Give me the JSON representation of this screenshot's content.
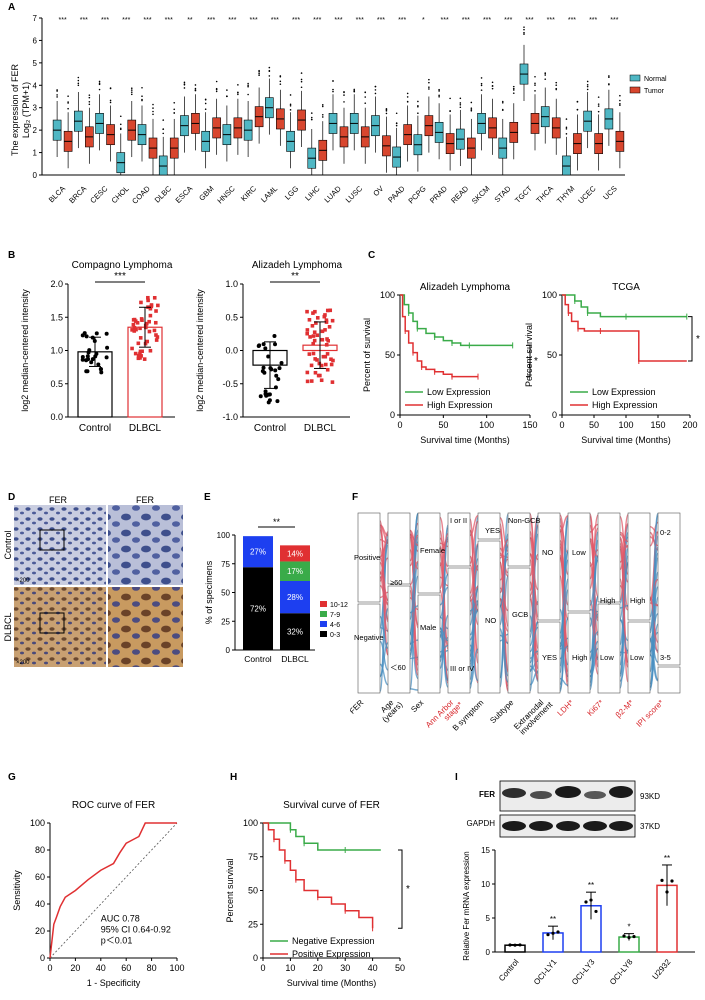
{
  "panel_labels": {
    "a": "A",
    "b": "B",
    "c": "C",
    "d": "D",
    "e": "E",
    "f": "F",
    "g": "G",
    "h": "H",
    "i": "I"
  },
  "colors": {
    "normal": "#4fb7c4",
    "tumor": "#d8462e",
    "green": "#3aab49",
    "red": "#e03032",
    "blue": "#1d3ff0",
    "sankey_red": "#e05a6a",
    "sankey_blue": "#4a8fc0"
  },
  "chart_data": [
    {
      "id": "A",
      "type": "box",
      "ylabel_line1": "The expression of FER",
      "ylabel_line2": "Log₂ (TPM+1)",
      "ylim": [
        0,
        7
      ],
      "yticks": [
        "0",
        "1",
        "2",
        "3",
        "4",
        "5",
        "6",
        "7"
      ],
      "legend": [
        "Normal",
        "Tumor"
      ],
      "categories": [
        "BLCA",
        "BRCA",
        "CESC",
        "CHOL",
        "COAD",
        "DLBC",
        "ESCA",
        "GBM",
        "HNSC",
        "KIRC",
        "LAML",
        "LGG",
        "LIHC",
        "LUAD",
        "LUSC",
        "OV",
        "PAAD",
        "PCPG",
        "PRAD",
        "READ",
        "SKCM",
        "STAD",
        "TGCT",
        "THCA",
        "THYM",
        "UCEC",
        "UCS"
      ],
      "significance": [
        "***",
        "***",
        "***",
        "***",
        "***",
        "***",
        "**",
        "***",
        "***",
        "***",
        "***",
        "***",
        "***",
        "***",
        "***",
        "***",
        "***",
        "*",
        "***",
        "***",
        "***",
        "***",
        "***",
        "***",
        "***",
        "***",
        "***"
      ],
      "normal_median": [
        2.0,
        2.4,
        2.3,
        0.55,
        1.8,
        0.4,
        2.2,
        1.5,
        1.8,
        2.0,
        3.0,
        1.5,
        0.75,
        2.3,
        2.3,
        2.2,
        0.8,
        1.35,
        1.9,
        1.6,
        2.3,
        1.2,
        4.5,
        2.6,
        0.4,
        2.4,
        2.5
      ],
      "tumor_median": [
        1.5,
        1.7,
        1.8,
        2.0,
        1.2,
        1.2,
        2.3,
        2.1,
        2.1,
        2.6,
        2.5,
        2.45,
        1.1,
        1.7,
        1.7,
        1.3,
        1.8,
        2.2,
        1.4,
        1.2,
        2.1,
        1.9,
        2.3,
        2.1,
        1.4,
        1.4,
        1.5
      ]
    },
    {
      "id": "B1",
      "type": "bar-scatter",
      "title": "Compagno Lymphoma",
      "ylabel": "log2 median-centered intensity",
      "categories": [
        "Control",
        "DLBCL"
      ],
      "values": [
        0.98,
        1.35
      ],
      "errors": [
        0.22,
        0.3
      ],
      "ylim": [
        0,
        2.0
      ],
      "yticks": [
        "0.0",
        "0.5",
        "1.0",
        "1.5",
        "2.0"
      ],
      "significance": "***"
    },
    {
      "id": "B2",
      "type": "bar-scatter",
      "title": "Alizadeh Lymphoma",
      "ylabel": "log2 median-centered intensity",
      "categories": [
        "Control",
        "DLBCL"
      ],
      "values": [
        -0.22,
        0.08
      ],
      "errors": [
        0.35,
        0.35
      ],
      "ylim": [
        -1.0,
        1.0
      ],
      "yticks": [
        "-1.0",
        "-0.5",
        "0.0",
        "0.5",
        "1.0"
      ],
      "significance": "**"
    },
    {
      "id": "C1",
      "type": "line",
      "title": "Alizadeh Lymphoma",
      "xlabel": "Survival time (Months)",
      "ylabel": "Percent of survival",
      "xlim": [
        0,
        150
      ],
      "xticks": [
        "0",
        "50",
        "100",
        "150"
      ],
      "ylim": [
        0,
        100
      ],
      "yticks": [
        "0",
        "50",
        "100"
      ],
      "series": [
        {
          "name": "Low Expression",
          "x": [
            0,
            5,
            10,
            15,
            20,
            30,
            40,
            50,
            60,
            70,
            80,
            90,
            130
          ],
          "y": [
            100,
            92,
            85,
            78,
            72,
            68,
            65,
            62,
            60,
            58,
            58,
            58,
            58
          ]
        },
        {
          "name": "High Expression",
          "x": [
            0,
            3,
            6,
            10,
            15,
            20,
            25,
            30,
            40,
            50,
            60,
            80,
            90
          ],
          "y": [
            100,
            82,
            70,
            60,
            52,
            45,
            40,
            38,
            36,
            34,
            32,
            32,
            32
          ]
        }
      ],
      "significance": "*"
    },
    {
      "id": "C2",
      "type": "line",
      "title": "TCGA",
      "xlabel": "Survival time (Months)",
      "ylabel": "Percent survival",
      "xlim": [
        0,
        200
      ],
      "xticks": [
        "0",
        "50",
        "100",
        "150",
        "200"
      ],
      "ylim": [
        0,
        100
      ],
      "yticks": [
        "0",
        "50",
        "100"
      ],
      "series": [
        {
          "name": "Low Expression",
          "x": [
            0,
            10,
            20,
            30,
            40,
            60,
            100,
            150,
            195
          ],
          "y": [
            100,
            100,
            95,
            90,
            85,
            82,
            82,
            82,
            82
          ]
        },
        {
          "name": "High Expression",
          "x": [
            0,
            5,
            10,
            15,
            25,
            35,
            60,
            110,
            120,
            195
          ],
          "y": [
            100,
            92,
            85,
            78,
            72,
            70,
            70,
            70,
            45,
            45
          ]
        }
      ],
      "significance": "*"
    },
    {
      "id": "E",
      "type": "stacked-bar",
      "ylabel": "% of specimens",
      "categories": [
        "Control",
        "DLBCL"
      ],
      "ylim": [
        0,
        100
      ],
      "yticks": [
        "0",
        "25",
        "50",
        "75",
        "100"
      ],
      "legend": [
        "10-12",
        "7-9",
        "4-6",
        "0-3"
      ],
      "series": [
        {
          "name": "0-3",
          "values": [
            72,
            32
          ],
          "labels": [
            "72%",
            "32%"
          ]
        },
        {
          "name": "4-6",
          "values": [
            27,
            28
          ],
          "labels": [
            "27%",
            "28%"
          ]
        },
        {
          "name": "7-9",
          "values": [
            0,
            17
          ],
          "labels": [
            "",
            "17%"
          ]
        },
        {
          "name": "10-12",
          "values": [
            0,
            14
          ],
          "labels": [
            "",
            "14%"
          ]
        }
      ],
      "significance": "**"
    },
    {
      "id": "G",
      "type": "line",
      "title": "ROC curve of FER",
      "xlabel": "1 - Specificity",
      "ylabel": "Sensitivity",
      "xlim": [
        0,
        100
      ],
      "xticks": [
        "0",
        "20",
        "40",
        "60",
        "80",
        "100"
      ],
      "ylim": [
        0,
        100
      ],
      "yticks": [
        "0",
        "20",
        "40",
        "60",
        "80",
        "100"
      ],
      "series": [
        {
          "name": "ROC",
          "x": [
            0,
            3,
            5,
            8,
            12,
            20,
            30,
            40,
            50,
            55,
            60,
            70,
            75,
            80,
            100
          ],
          "y": [
            0,
            25,
            30,
            38,
            45,
            50,
            58,
            65,
            70,
            78,
            85,
            90,
            100,
            100,
            100
          ]
        }
      ],
      "annotation": [
        "AUC 0.78",
        "95% CI 0.64-0.92",
        "p＜0.01"
      ]
    },
    {
      "id": "H",
      "type": "line",
      "title": "Survival curve of FER",
      "xlabel": "Survival time (Months)",
      "ylabel": "Percent survival",
      "xlim": [
        0,
        50
      ],
      "xticks": [
        "0",
        "10",
        "20",
        "30",
        "40",
        "50"
      ],
      "ylim": [
        0,
        100
      ],
      "yticks": [
        "0",
        "25",
        "50",
        "75",
        "100"
      ],
      "series": [
        {
          "name": "Negative Expression",
          "x": [
            0,
            5,
            10,
            12,
            15,
            20,
            30,
            43
          ],
          "y": [
            100,
            100,
            95,
            90,
            85,
            80,
            80,
            80
          ]
        },
        {
          "name": "Positive Expression",
          "x": [
            0,
            2,
            4,
            6,
            8,
            10,
            12,
            15,
            20,
            25,
            30,
            35,
            40
          ],
          "y": [
            100,
            95,
            88,
            80,
            72,
            65,
            58,
            50,
            45,
            40,
            35,
            30,
            22
          ]
        }
      ],
      "significance": "*"
    },
    {
      "id": "I",
      "type": "bar",
      "ylabel": "Relative Fer mRNA expression",
      "categories": [
        "Control",
        "OCI-LY1",
        "OCI-LY3",
        "OCI-LY8",
        "U2932"
      ],
      "values": [
        1.0,
        2.8,
        6.8,
        2.2,
        9.8
      ],
      "errors": [
        0.1,
        1.0,
        2.0,
        0.5,
        3.0
      ],
      "significance": [
        "",
        "**",
        "**",
        "*",
        "**"
      ],
      "ylim": [
        0,
        15
      ],
      "yticks": [
        "0",
        "5",
        "10",
        "15"
      ]
    }
  ],
  "panel_d": {
    "col1": "FER",
    "col2": "FER",
    "row1": "Control",
    "row2": "DLBCL",
    "scale1": "×200",
    "scale2": "×200"
  },
  "panel_f": {
    "axis_labels": [
      "FER",
      "Age\n(years)",
      "Sex",
      "Ann Arbor\nstage*",
      "B symptom",
      "Subtype",
      "Extranodal\ninvolvement",
      "LDH*",
      "Ki67*",
      "β2-M*",
      "IPI score*"
    ],
    "node_labels": {
      "positive": "Positive",
      "negative": "Negative",
      "age_high": "≥60",
      "age_low": "＜60",
      "female": "Female",
      "male": "Male",
      "stage_low": "I or II",
      "stage_high": "III or IV",
      "yes_b": "YES",
      "no_b": "NO",
      "nongcb": "Non-GCB",
      "gcb": "GCB",
      "no_e": "NO",
      "yes_e": "YES",
      "ldh_low": "Low",
      "ldh_high": "High",
      "ki_high": "High",
      "ki_low": "Low",
      "b2_high": "High",
      "b2_low": "Low",
      "ipi_low": "0-2",
      "ipi_high": "3-5"
    }
  },
  "panel_i_blot": {
    "row1": "FER",
    "row2": "GAPDH",
    "size1": "93KD",
    "size2": "37KD"
  }
}
